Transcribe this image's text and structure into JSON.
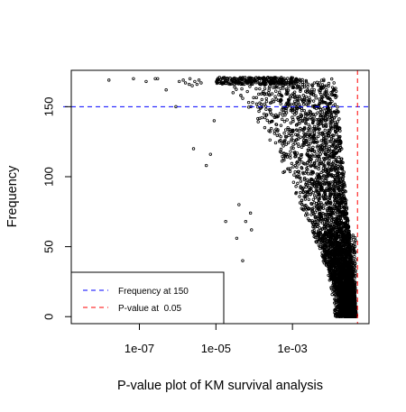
{
  "chart_data": {
    "type": "scatter",
    "title": "",
    "xlabel": "P-value plot of KM survival analysis",
    "ylabel": "Frequency",
    "x_scale": "log10",
    "xlim": [
      1.66e-09,
      0.1
    ],
    "ylim": [
      -5,
      176
    ],
    "x_ticks": [
      {
        "value": 1e-07,
        "label": "1e-07"
      },
      {
        "value": 1e-05,
        "label": "1e-05"
      },
      {
        "value": 0.001,
        "label": "1e-03"
      }
    ],
    "y_ticks": [
      {
        "value": 0,
        "label": "0"
      },
      {
        "value": 50,
        "label": "50"
      },
      {
        "value": 100,
        "label": "100"
      },
      {
        "value": 150,
        "label": "150"
      }
    ],
    "grid": false,
    "point_style": "open-circle",
    "point_color": "#000000",
    "reference_lines": [
      {
        "orientation": "horizontal",
        "value": 150,
        "color": "#0000ff",
        "dash": "dashed"
      },
      {
        "orientation": "vertical",
        "value": 0.05,
        "color": "#ff0000",
        "dash": "dashed"
      }
    ],
    "legend": {
      "placement": "bottom-left",
      "entries": [
        {
          "label": "Frequency at 150",
          "color": "#0000ff",
          "style": "dashed"
        },
        {
          "label": "P-value at  0.05",
          "color": "#ff0000",
          "style": "dashed"
        }
      ]
    },
    "points": [
      [
        1.6e-08,
        169
      ],
      [
        7e-08,
        170
      ],
      [
        1.5e-07,
        168
      ],
      [
        2.6e-07,
        170
      ],
      [
        3e-07,
        170
      ],
      [
        5e-07,
        162
      ],
      [
        9e-07,
        150
      ],
      [
        1.1e-06,
        168
      ],
      [
        1.4e-06,
        169
      ],
      [
        1.6e-06,
        167
      ],
      [
        2e-06,
        166
      ],
      [
        2.1e-06,
        170
      ],
      [
        2.4e-06,
        165
      ],
      [
        2.6e-06,
        120
      ],
      [
        2.8e-06,
        168
      ],
      [
        3.2e-06,
        166
      ],
      [
        3.6e-06,
        169
      ],
      [
        4.1e-06,
        167
      ],
      [
        5.6e-06,
        108
      ],
      [
        7.2e-06,
        116
      ],
      [
        9e-06,
        140
      ],
      [
        1.8e-05,
        68
      ],
      [
        2.8e-05,
        160
      ],
      [
        3.5e-05,
        56
      ],
      [
        4e-05,
        80
      ],
      [
        4.5e-05,
        158
      ],
      [
        5e-05,
        40
      ],
      [
        6e-05,
        68
      ],
      [
        7e-05,
        168
      ],
      [
        8e-05,
        74
      ],
      [
        8.5e-05,
        62
      ]
    ],
    "dense_region_description": "Dense cloud of ~9000 points spreading from ~1e-5 to 0.05; frequency ~170 band near p 1e-5..1e-3, funnelling toward 0 as p approaches 0.05"
  }
}
